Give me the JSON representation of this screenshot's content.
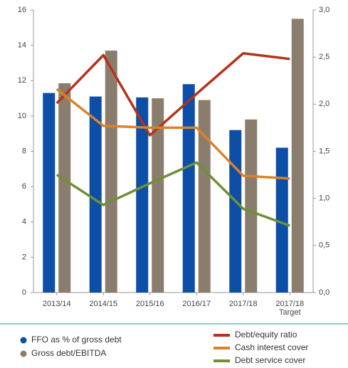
{
  "chart_data": {
    "type": "bar-line",
    "categories": [
      "2013/14",
      "2014/15",
      "2015/16",
      "2016/17",
      "2017/18",
      "2017/18\nTarget"
    ],
    "series": [
      {
        "name": "FFO as % of gross debt",
        "color": "#0d4ea6",
        "kind": "bar",
        "values": [
          11.3,
          11.1,
          11.05,
          11.8,
          9.2,
          8.2
        ]
      },
      {
        "name": "Gross debt/EBITDA",
        "color": "#8b7d6e",
        "kind": "bar",
        "values": [
          11.85,
          13.7,
          11.0,
          10.9,
          9.8,
          15.5
        ]
      },
      {
        "name": "Debt/equity ratio",
        "color": "#b5321b",
        "kind": "line",
        "axis": "y2",
        "values": [
          2.01,
          2.52,
          1.67,
          2.11,
          2.54,
          2.48
        ]
      },
      {
        "name": "Cash interest cover",
        "color": "#d9822b",
        "kind": "line",
        "axis": "y2",
        "values": [
          2.16,
          1.77,
          1.75,
          1.75,
          1.24,
          1.21
        ]
      },
      {
        "name": "Debt service cover",
        "color": "#6f8f3a",
        "kind": "line",
        "axis": "y2",
        "values": [
          1.25,
          0.93,
          1.16,
          1.38,
          0.89,
          0.71
        ]
      }
    ],
    "ylim": [
      0,
      16
    ],
    "yticks": [
      0,
      2,
      4,
      6,
      8,
      10,
      12,
      14,
      16
    ],
    "y2lim": [
      0,
      3
    ],
    "y2ticks": [
      {
        "value": 0,
        "label": "0,0"
      },
      {
        "value": 0.5,
        "label": "0,5"
      },
      {
        "value": 1,
        "label": "1,0"
      },
      {
        "value": 1.5,
        "label": "1,5"
      },
      {
        "value": 2,
        "label": "2,0"
      },
      {
        "value": 2.5,
        "label": "2,5"
      },
      {
        "value": 3,
        "label": "3,0"
      }
    ]
  }
}
